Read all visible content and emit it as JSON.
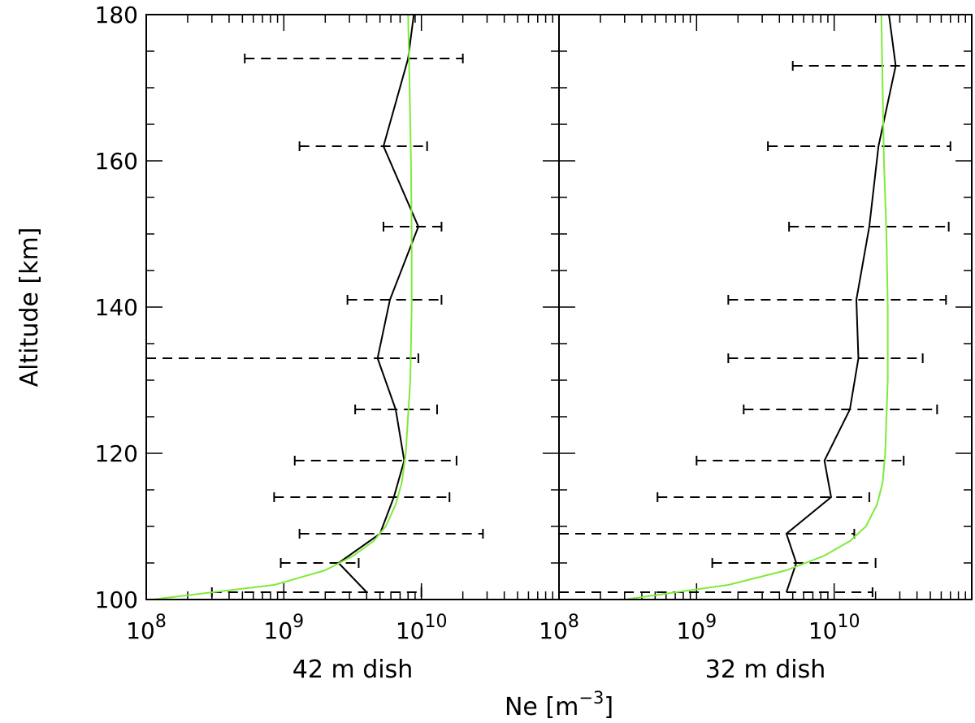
{
  "chart_data": {
    "type": "line",
    "xscale": "log",
    "xlabel": "Ne [m",
    "xlabel_sup": "−3",
    "xlabel_close": "]",
    "ylabel": "Altitude [km]",
    "ylim": [
      100,
      180
    ],
    "yticks": [
      100,
      120,
      140,
      160,
      180
    ],
    "ytick_labels": [
      "100",
      "120",
      "140",
      "160",
      "180"
    ],
    "xtick_labels": [
      {
        "value": 100000000,
        "base": "10",
        "exp": "8"
      },
      {
        "value": 1000000000,
        "base": "10",
        "exp": "9"
      },
      {
        "value": 10000000000,
        "base": "10",
        "exp": "10"
      }
    ],
    "panels": [
      {
        "subtitle": "42 m dish",
        "xlim": [
          100000000,
          100000000000
        ],
        "series": [
          {
            "style": "measured",
            "color": "#000000",
            "points": [
              {
                "y": 101,
                "x": 4000000000.0,
                "lo": 300000000.0,
                "hi": 10000000000.0
              },
              {
                "y": 105,
                "x": 2500000000.0,
                "lo": 950000000.0,
                "hi": 3500000000.0
              },
              {
                "y": 109,
                "x": 5000000000.0,
                "lo": 1300000000.0,
                "hi": 28000000000.0
              },
              {
                "y": 114,
                "x": 6300000000.0,
                "lo": 850000000.0,
                "hi": 16000000000.0
              },
              {
                "y": 119,
                "x": 7500000000.0,
                "lo": 1200000000.0,
                "hi": 18000000000.0
              },
              {
                "y": 126,
                "x": 6500000000.0,
                "lo": 3300000000.0,
                "hi": 13000000000.0
              },
              {
                "y": 133,
                "x": 4800000000.0,
                "lo": 100000000.0,
                "hi": 9500000000.0
              },
              {
                "y": 141,
                "x": 5900000000.0,
                "lo": 2900000000.0,
                "hi": 14000000000.0
              },
              {
                "y": 151,
                "x": 9500000000.0,
                "lo": 5300000000.0,
                "hi": 14000000000.0
              },
              {
                "y": 162,
                "x": 5300000000.0,
                "lo": 1300000000.0,
                "hi": 11000000000.0
              },
              {
                "y": 174,
                "x": 8000000000.0,
                "lo": 520000000.0,
                "hi": 20000000000.0
              },
              {
                "y": 180,
                "x": 8800000000.0
              }
            ]
          },
          {
            "style": "model",
            "color": "#7fea3a",
            "points": [
              {
                "y": 100,
                "x": 110000000.0
              },
              {
                "y": 102,
                "x": 850000000.0
              },
              {
                "y": 104,
                "x": 2000000000.0
              },
              {
                "y": 106,
                "x": 3200000000.0
              },
              {
                "y": 108,
                "x": 4500000000.0
              },
              {
                "y": 110,
                "x": 5500000000.0
              },
              {
                "y": 113,
                "x": 6500000000.0
              },
              {
                "y": 116,
                "x": 7200000000.0
              },
              {
                "y": 120,
                "x": 7700000000.0
              },
              {
                "y": 130,
                "x": 8300000000.0
              },
              {
                "y": 140,
                "x": 8500000000.0
              },
              {
                "y": 150,
                "x": 8500000000.0
              },
              {
                "y": 160,
                "x": 8400000000.0
              },
              {
                "y": 170,
                "x": 8200000000.0
              },
              {
                "y": 180,
                "x": 8000000000.0
              }
            ]
          }
        ]
      },
      {
        "subtitle": "32 m dish",
        "xlim": [
          100000000,
          100000000000
        ],
        "series": [
          {
            "style": "measured",
            "color": "#000000",
            "points": [
              {
                "y": 101,
                "x": 4500000000.0,
                "lo": 100000000.0,
                "hi": 19000000000.0
              },
              {
                "y": 105,
                "x": 5300000000.0,
                "lo": 1300000000.0,
                "hi": 20000000000.0
              },
              {
                "y": 109,
                "x": 4500000000.0,
                "lo": 100000000.0,
                "hi": 14000000000.0
              },
              {
                "y": 114,
                "x": 9500000000.0,
                "lo": 520000000.0,
                "hi": 18000000000.0
              },
              {
                "y": 119,
                "x": 8500000000.0,
                "lo": 1000000000.0,
                "hi": 32000000000.0
              },
              {
                "y": 126,
                "x": 13000000000.0,
                "lo": 2200000000.0,
                "hi": 56000000000.0
              },
              {
                "y": 133,
                "x": 15000000000.0,
                "lo": 1700000000.0,
                "hi": 44000000000.0
              },
              {
                "y": 141,
                "x": 14500000000.0,
                "lo": 1700000000.0,
                "hi": 65000000000.0
              },
              {
                "y": 151,
                "x": 18000000000.0,
                "lo": 4700000000.0,
                "hi": 68000000000.0
              },
              {
                "y": 162,
                "x": 21000000000.0,
                "lo": 3300000000.0,
                "hi": 70000000000.0
              },
              {
                "y": 173,
                "x": 28000000000.0,
                "lo": 5000000000.0,
                "hi": 100000000000.0
              },
              {
                "y": 180,
                "x": 25000000000.0
              }
            ]
          },
          {
            "style": "model",
            "color": "#7fea3a",
            "points": [
              {
                "y": 100,
                "x": 300000000.0
              },
              {
                "y": 102,
                "x": 1700000000.0
              },
              {
                "y": 104,
                "x": 4500000000.0
              },
              {
                "y": 106,
                "x": 8500000000.0
              },
              {
                "y": 108,
                "x": 13000000000.0
              },
              {
                "y": 110,
                "x": 17000000000.0
              },
              {
                "y": 113,
                "x": 20500000000.0
              },
              {
                "y": 116,
                "x": 22500000000.0
              },
              {
                "y": 120,
                "x": 23500000000.0
              },
              {
                "y": 130,
                "x": 24500000000.0
              },
              {
                "y": 140,
                "x": 24500000000.0
              },
              {
                "y": 150,
                "x": 24000000000.0
              },
              {
                "y": 160,
                "x": 23000000000.0
              },
              {
                "y": 170,
                "x": 22500000000.0
              },
              {
                "y": 180,
                "x": 22000000000.0
              }
            ]
          }
        ]
      }
    ]
  }
}
